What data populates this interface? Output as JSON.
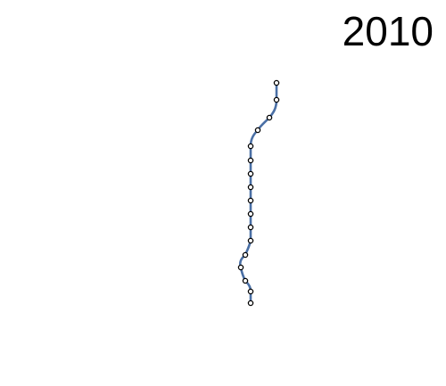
{
  "year": "2010",
  "colors": {
    "line": "#4a6fa5",
    "station_fill": "#ffffff",
    "station_stroke": "#000000",
    "background": "#ffffff",
    "text": "#000000"
  },
  "metro_line": {
    "station_count": 17
  }
}
